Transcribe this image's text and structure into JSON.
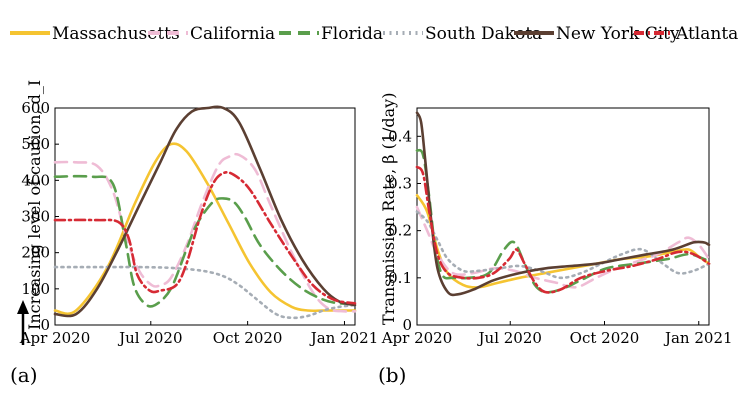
{
  "colors": {
    "Massachusetts": "#f5c431",
    "California": "#efbcd5",
    "Florida": "#5a9e4c",
    "South Dakota": "#a6adb5",
    "New York City": "#5b3f32",
    "Atlanta": "#d62a34"
  },
  "chart_data": [
    {
      "type": "line",
      "panel_label": "(a)",
      "ylabel": "Increasing level of caution, d_I",
      "ylim": [
        0,
        600
      ],
      "yticks": [
        "0",
        "100",
        "200",
        "300",
        "400",
        "500",
        "600"
      ],
      "xlim_days": [
        0,
        285
      ],
      "xticks": [
        {
          "label": "Apr 2020",
          "day": 0
        },
        {
          "label": "Jul 2020",
          "day": 91
        },
        {
          "label": "Oct 2020",
          "day": 183
        },
        {
          "label": "Jan 2021",
          "day": 275
        }
      ],
      "arrow": "up",
      "series": [
        {
          "name": "Massachusetts",
          "dash": "solid",
          "x": [
            0,
            20,
            50,
            75,
            95,
            110,
            125,
            145,
            165,
            185,
            205,
            225,
            240,
            255,
            270,
            285
          ],
          "y": [
            40,
            40,
            160,
            330,
            450,
            500,
            480,
            390,
            280,
            170,
            90,
            50,
            40,
            40,
            40,
            40
          ]
        },
        {
          "name": "California",
          "dash": "dash",
          "x": [
            0,
            20,
            40,
            55,
            68,
            80,
            92,
            100,
            110,
            125,
            140,
            155,
            165,
            175,
            190,
            205,
            225,
            245,
            260,
            275,
            285
          ],
          "y": [
            450,
            450,
            440,
            370,
            240,
            150,
            110,
            110,
            130,
            220,
            340,
            440,
            465,
            470,
            430,
            330,
            200,
            90,
            45,
            38,
            38
          ]
        },
        {
          "name": "Florida",
          "dash": "dash",
          "x": [
            0,
            35,
            55,
            67,
            75,
            85,
            95,
            110,
            125,
            135,
            150,
            160,
            170,
            180,
            195,
            215,
            235,
            255,
            270,
            285
          ],
          "y": [
            410,
            410,
            390,
            230,
            110,
            60,
            55,
            100,
            210,
            280,
            340,
            350,
            340,
            300,
            220,
            150,
            100,
            70,
            60,
            60
          ]
        },
        {
          "name": "South Dakota",
          "dash": "dot",
          "x": [
            0,
            30,
            80,
            110,
            140,
            160,
            175,
            190,
            210,
            225,
            240,
            255,
            270,
            285
          ],
          "y": [
            160,
            160,
            160,
            158,
            150,
            135,
            110,
            75,
            30,
            20,
            25,
            40,
            50,
            55
          ]
        },
        {
          "name": "New York City",
          "dash": "solid",
          "x": [
            0,
            20,
            40,
            60,
            80,
            100,
            115,
            130,
            145,
            160,
            175,
            195,
            215,
            235,
            255,
            270,
            285
          ],
          "y": [
            30,
            30,
            100,
            210,
            330,
            450,
            540,
            590,
            600,
            600,
            560,
            430,
            290,
            180,
            100,
            65,
            55
          ]
        },
        {
          "name": "Atlanta",
          "dash": "dashdot",
          "x": [
            0,
            40,
            60,
            70,
            78,
            90,
            100,
            115,
            125,
            138,
            150,
            160,
            170,
            185,
            205,
            225,
            245,
            265,
            285
          ],
          "y": [
            290,
            290,
            285,
            240,
            140,
            95,
            95,
            110,
            170,
            300,
            390,
            420,
            415,
            375,
            280,
            190,
            110,
            70,
            60
          ]
        }
      ]
    },
    {
      "type": "line",
      "panel_label": "(b)",
      "ylabel": "Transmission Rate, β (1/day)",
      "ylim": [
        0,
        0.46
      ],
      "yticks": [
        "0",
        "0.1",
        "0.2",
        "0.3",
        "0.4"
      ],
      "xlim_days": [
        0,
        285
      ],
      "xticks": [
        {
          "label": "Apr 2020",
          "day": 0
        },
        {
          "label": "Jul 2020",
          "day": 91
        },
        {
          "label": "Oct 2020",
          "day": 183
        },
        {
          "label": "Jan 2021",
          "day": 275
        }
      ],
      "series": [
        {
          "name": "Massachusetts",
          "dash": "solid",
          "x": [
            0,
            10,
            20,
            30,
            45,
            60,
            80,
            100,
            125,
            150,
            175,
            200,
            225,
            250,
            265,
            275,
            285
          ],
          "y": [
            0.275,
            0.24,
            0.16,
            0.11,
            0.085,
            0.08,
            0.09,
            0.1,
            0.11,
            0.12,
            0.13,
            0.14,
            0.145,
            0.155,
            0.16,
            0.145,
            0.13
          ]
        },
        {
          "name": "California",
          "dash": "dash",
          "x": [
            0,
            10,
            20,
            35,
            55,
            75,
            95,
            115,
            135,
            155,
            175,
            195,
            215,
            235,
            255,
            265,
            275,
            285
          ],
          "y": [
            0.25,
            0.2,
            0.15,
            0.11,
            0.11,
            0.12,
            0.115,
            0.1,
            0.09,
            0.08,
            0.1,
            0.12,
            0.135,
            0.15,
            0.175,
            0.185,
            0.17,
            0.14
          ]
        },
        {
          "name": "Florida",
          "dash": "dash",
          "x": [
            0,
            6,
            12,
            18,
            25,
            35,
            50,
            70,
            85,
            95,
            105,
            115,
            125,
            140,
            160,
            185,
            215,
            245,
            265,
            280,
            285
          ],
          "y": [
            0.37,
            0.36,
            0.27,
            0.16,
            0.105,
            0.1,
            0.1,
            0.11,
            0.16,
            0.175,
            0.13,
            0.085,
            0.07,
            0.075,
            0.095,
            0.12,
            0.13,
            0.14,
            0.15,
            0.14,
            0.135
          ]
        },
        {
          "name": "South Dakota",
          "dash": "dot",
          "x": [
            0,
            10,
            20,
            30,
            45,
            60,
            80,
            100,
            120,
            140,
            160,
            180,
            200,
            220,
            240,
            255,
            270,
            285
          ],
          "y": [
            0.24,
            0.22,
            0.18,
            0.14,
            0.115,
            0.115,
            0.12,
            0.125,
            0.115,
            0.1,
            0.11,
            0.13,
            0.15,
            0.16,
            0.13,
            0.11,
            0.115,
            0.13
          ]
        },
        {
          "name": "New York City",
          "dash": "solid",
          "x": [
            0,
            4,
            8,
            14,
            20,
            30,
            40,
            55,
            75,
            100,
            125,
            150,
            175,
            200,
            225,
            250,
            270,
            280,
            285
          ],
          "y": [
            0.45,
            0.43,
            0.35,
            0.22,
            0.12,
            0.07,
            0.065,
            0.075,
            0.095,
            0.11,
            0.12,
            0.125,
            0.13,
            0.14,
            0.15,
            0.16,
            0.175,
            0.175,
            0.17
          ]
        },
        {
          "name": "Atlanta",
          "dash": "dashdot",
          "x": [
            0,
            6,
            12,
            20,
            30,
            45,
            60,
            75,
            90,
            97,
            105,
            115,
            125,
            140,
            160,
            185,
            210,
            235,
            255,
            270,
            285
          ],
          "y": [
            0.335,
            0.32,
            0.24,
            0.15,
            0.11,
            0.1,
            0.1,
            0.11,
            0.14,
            0.16,
            0.13,
            0.09,
            0.07,
            0.075,
            0.1,
            0.115,
            0.125,
            0.14,
            0.155,
            0.15,
            0.13
          ]
        }
      ]
    }
  ]
}
